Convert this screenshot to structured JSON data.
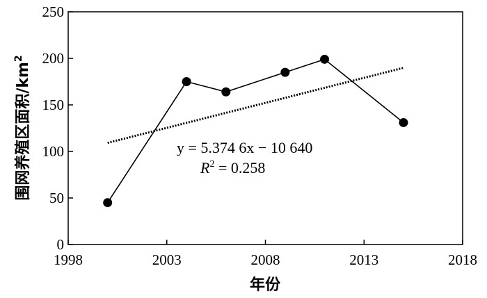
{
  "chart_data": {
    "type": "line",
    "xlabel": "年份",
    "ylabel": "围网养殖区面积/km",
    "ylabel_sup": "2",
    "xlim": [
      1998,
      2018
    ],
    "ylim": [
      0,
      250
    ],
    "xticks": [
      1998,
      2003,
      2008,
      2013,
      2018
    ],
    "yticks": [
      0,
      50,
      100,
      150,
      200,
      250
    ],
    "grid": false,
    "series": [
      {
        "style": "solid-line-with-filled-circle-markers",
        "color": "#000000",
        "x": [
          2000,
          2004,
          2006,
          2009,
          2011,
          2015
        ],
        "y": [
          45,
          175,
          164,
          185,
          199,
          131
        ]
      }
    ],
    "trendline": {
      "style": "dotted",
      "color": "#000000",
      "slope": 5.3746,
      "intercept": -10640,
      "x_range": [
        2000,
        2015
      ]
    },
    "equation": {
      "line1": "y = 5.374 6x − 10 640",
      "line2_prefix": "R",
      "line2_sup": "2",
      "line2_suffix": " = 0.258"
    }
  }
}
